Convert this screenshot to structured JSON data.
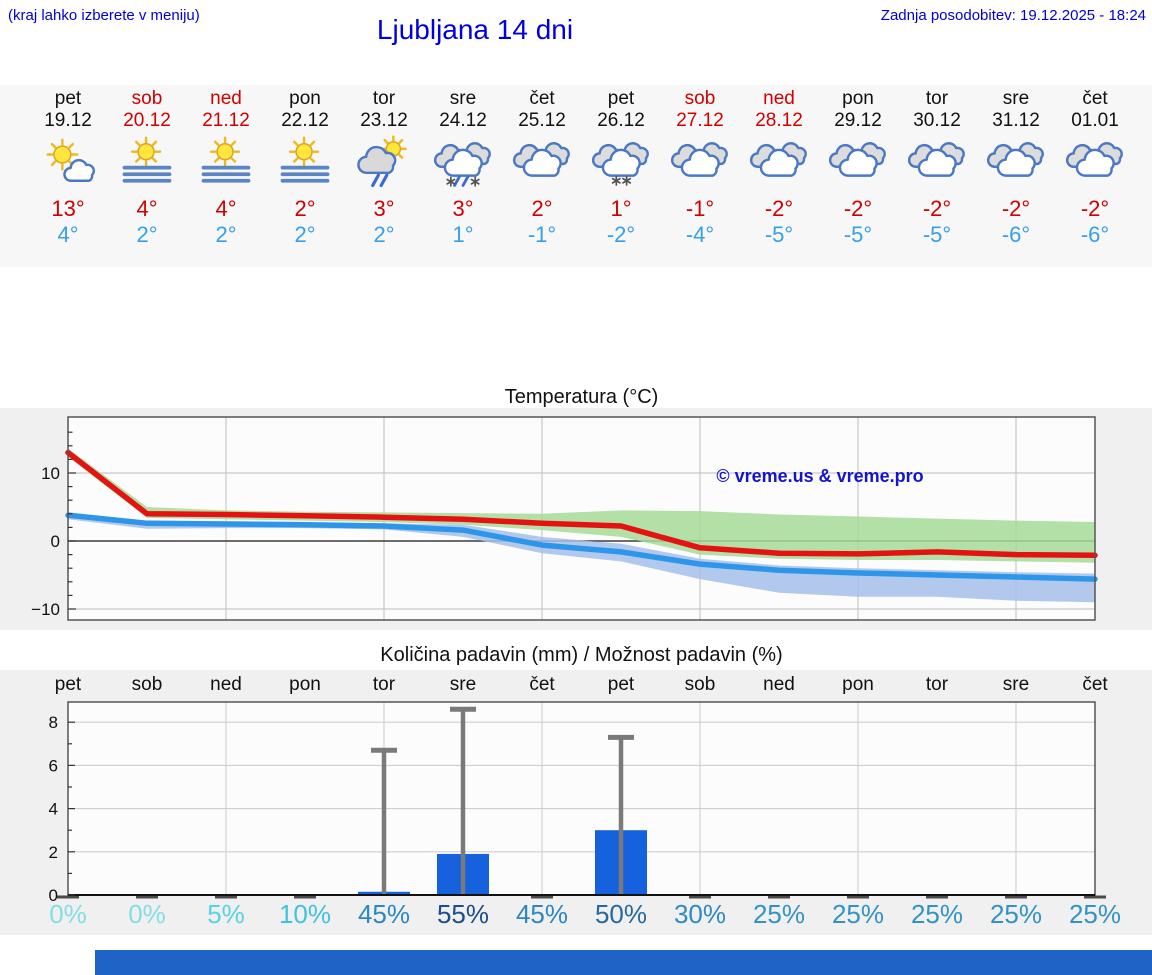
{
  "header": {
    "note": "(kraj lahko izberete v meniju)",
    "title": "Ljubljana 14 dni",
    "updated": "Zadnja posodobitev: 19.12.2025 - 18:24"
  },
  "colors": {
    "accent_blue": "#0000dd",
    "weekend_red": "#d10000",
    "hi_red": "#d10000",
    "lo_blue": "#35a0ea",
    "bar_blue": "#1661de",
    "whisker_gray": "#7a7a7a",
    "footer_blue": "#2063c6",
    "watermark_blue": "#1414cc"
  },
  "days": [
    {
      "name": "pet",
      "date": "19.12",
      "weekend": false,
      "icon": "partly-sunny",
      "hi": "13°",
      "lo": "4°"
    },
    {
      "name": "sob",
      "date": "20.12",
      "weekend": true,
      "icon": "fog",
      "hi": "4°",
      "lo": "2°"
    },
    {
      "name": "ned",
      "date": "21.12",
      "weekend": true,
      "icon": "fog",
      "hi": "4°",
      "lo": "2°"
    },
    {
      "name": "pon",
      "date": "22.12",
      "weekend": false,
      "icon": "fog",
      "hi": "2°",
      "lo": "2°"
    },
    {
      "name": "tor",
      "date": "23.12",
      "weekend": false,
      "icon": "sun-rain",
      "hi": "3°",
      "lo": "2°"
    },
    {
      "name": "sre",
      "date": "24.12",
      "weekend": false,
      "icon": "sleet",
      "hi": "3°",
      "lo": "1°"
    },
    {
      "name": "čet",
      "date": "25.12",
      "weekend": false,
      "icon": "cloudy",
      "hi": "2°",
      "lo": "-1°"
    },
    {
      "name": "pet",
      "date": "26.12",
      "weekend": false,
      "icon": "snow",
      "hi": "1°",
      "lo": "-2°"
    },
    {
      "name": "sob",
      "date": "27.12",
      "weekend": true,
      "icon": "cloudy",
      "hi": "-1°",
      "lo": "-4°"
    },
    {
      "name": "ned",
      "date": "28.12",
      "weekend": true,
      "icon": "cloudy",
      "hi": "-2°",
      "lo": "-5°"
    },
    {
      "name": "pon",
      "date": "29.12",
      "weekend": false,
      "icon": "cloudy",
      "hi": "-2°",
      "lo": "-5°"
    },
    {
      "name": "tor",
      "date": "30.12",
      "weekend": false,
      "icon": "cloudy",
      "hi": "-2°",
      "lo": "-5°"
    },
    {
      "name": "sre",
      "date": "31.12",
      "weekend": false,
      "icon": "cloudy",
      "hi": "-2°",
      "lo": "-6°"
    },
    {
      "name": "čet",
      "date": "01.01",
      "weekend": false,
      "icon": "cloudy",
      "hi": "-2°",
      "lo": "-6°"
    }
  ],
  "chart_data": [
    {
      "type": "line",
      "title": "Temperatura (°C)",
      "watermark": "© vreme.us & vreme.pro",
      "categories": [
        "19.12",
        "20.12",
        "21.12",
        "22.12",
        "23.12",
        "24.12",
        "25.12",
        "26.12",
        "27.12",
        "28.12",
        "29.12",
        "30.12",
        "31.12",
        "01.01"
      ],
      "series": [
        {
          "name": "max temperature",
          "color": "#e51212",
          "values": [
            13,
            4,
            4,
            2,
            3,
            3,
            2,
            1,
            -1,
            -2,
            -2,
            -2,
            -2,
            -2
          ],
          "plot_values": [
            13,
            4,
            3.9,
            3.7,
            3.5,
            3.2,
            2.6,
            2.2,
            -1.0,
            -1.8,
            -1.9,
            -1.6,
            -2.0,
            -2.1
          ]
        },
        {
          "name": "min temperature",
          "color": "#2d96e8",
          "values": [
            4,
            2,
            2,
            2,
            2,
            1,
            -1,
            -2,
            -4,
            -5,
            -5,
            -5,
            -6,
            -6
          ],
          "plot_values": [
            3.8,
            2.6,
            2.5,
            2.4,
            2.2,
            1.6,
            -0.6,
            -1.6,
            -3.4,
            -4.3,
            -4.7,
            -5.0,
            -5.3,
            -5.6
          ]
        }
      ],
      "bands": [
        {
          "name": "max range",
          "color": "#a6da97",
          "upper": [
            13.6,
            5.0,
            4.5,
            4.3,
            4.2,
            4.1,
            4.0,
            4.5,
            4.4,
            3.9,
            3.6,
            3.3,
            3.0,
            2.8
          ],
          "lower": [
            12.4,
            3.4,
            3.2,
            3.0,
            2.8,
            2.4,
            1.6,
            0.6,
            -2.0,
            -2.6,
            -2.8,
            -2.8,
            -3.0,
            -3.2
          ]
        },
        {
          "name": "min range",
          "color": "#a4c0ea",
          "upper": [
            4.2,
            3.0,
            2.9,
            2.8,
            2.6,
            2.4,
            0.6,
            -0.4,
            -2.6,
            -3.6,
            -4.0,
            -4.3,
            -4.6,
            -4.8
          ],
          "lower": [
            3.2,
            1.8,
            1.9,
            1.9,
            1.7,
            0.6,
            -1.8,
            -3.0,
            -5.6,
            -7.6,
            -8.2,
            -8.2,
            -8.8,
            -9.0
          ]
        }
      ],
      "yticks": [
        "−10",
        "0",
        "10"
      ],
      "ytick_values": [
        -10,
        0,
        10
      ],
      "ylim": [
        -11.6,
        18.2
      ],
      "grid": true
    },
    {
      "type": "bar",
      "title": "Količina padavin (mm) / Možnost padavin (%)",
      "categories": [
        "pet",
        "sob",
        "ned",
        "pon",
        "tor",
        "sre",
        "čet",
        "pet",
        "sob",
        "ned",
        "pon",
        "tor",
        "sre",
        "čet"
      ],
      "values": [
        0,
        0,
        0,
        0,
        0.15,
        1.9,
        0,
        3.0,
        0,
        0,
        0,
        0,
        0,
        0
      ],
      "whisker_max": [
        null,
        null,
        null,
        null,
        6.7,
        8.6,
        null,
        7.3,
        null,
        null,
        null,
        null,
        null,
        null
      ],
      "yticks": [
        0,
        2,
        4,
        6,
        8
      ],
      "ylim": [
        0,
        8.95
      ],
      "grid": true,
      "probabilities": [
        {
          "label": "0%",
          "color": "#82dee4"
        },
        {
          "label": "0%",
          "color": "#82dee4"
        },
        {
          "label": "5%",
          "color": "#55d3e2"
        },
        {
          "label": "10%",
          "color": "#3fc3de"
        },
        {
          "label": "45%",
          "color": "#2d86c4"
        },
        {
          "label": "55%",
          "color": "#1b4e8c"
        },
        {
          "label": "45%",
          "color": "#2d86c4"
        },
        {
          "label": "50%",
          "color": "#25699f"
        },
        {
          "label": "30%",
          "color": "#2e8ac2"
        },
        {
          "label": "25%",
          "color": "#3292c8"
        },
        {
          "label": "25%",
          "color": "#3292c8"
        },
        {
          "label": "25%",
          "color": "#3292c8"
        },
        {
          "label": "25%",
          "color": "#3292c8"
        },
        {
          "label": "25%",
          "color": "#3292c8"
        }
      ]
    }
  ]
}
